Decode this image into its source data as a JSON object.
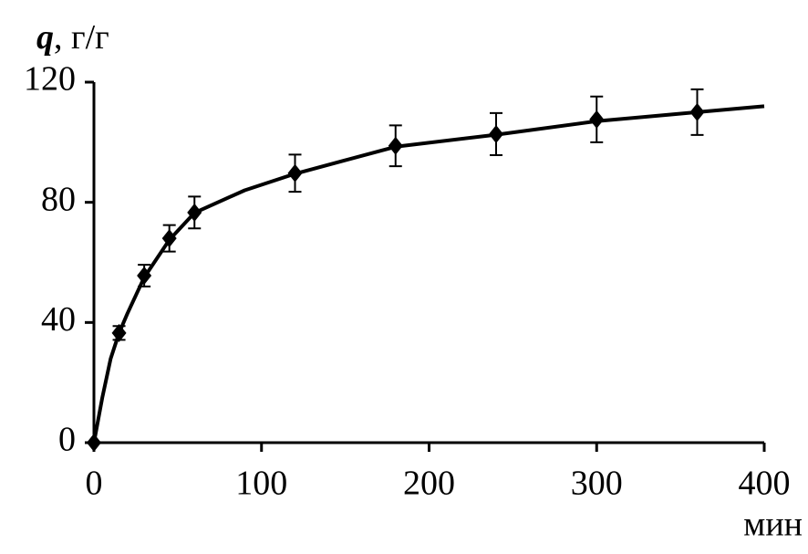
{
  "chart_data": {
    "type": "scatter",
    "y_label_symbol": "q",
    "y_label_unit": ", г/г",
    "x_label": "мин",
    "xlim": [
      0,
      400
    ],
    "xticks": [
      0,
      100,
      200,
      300,
      400
    ],
    "ylim": [
      0,
      120
    ],
    "yticks": [
      0,
      40,
      80,
      120
    ],
    "color": "#000000",
    "points": {
      "x": [
        0,
        15,
        30,
        45,
        60,
        120,
        180,
        240,
        300,
        360
      ],
      "values": [
        0,
        36.5,
        55.6,
        68,
        76.6,
        89.7,
        98.8,
        102.7,
        107.6,
        110
      ],
      "errors": [
        0,
        2.3,
        3.6,
        4.4,
        5.3,
        6.2,
        6.8,
        7,
        7.6,
        7.6
      ]
    },
    "curve": {
      "x": [
        0,
        5,
        10,
        15,
        20,
        30,
        45,
        60,
        90,
        120,
        150,
        180,
        240,
        300,
        360,
        400
      ],
      "values": [
        0,
        15,
        28,
        36.5,
        43,
        55,
        67.5,
        76.5,
        84,
        89.5,
        94,
        98.5,
        102.5,
        107,
        110,
        112
      ]
    }
  }
}
